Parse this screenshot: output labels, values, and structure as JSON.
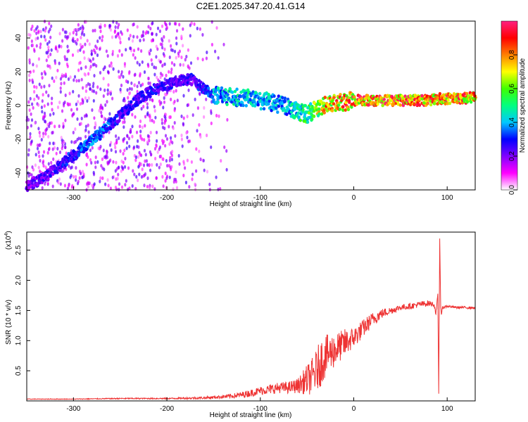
{
  "figure_title": "C2E1.2025.347.20.41.G14",
  "chart_data": [
    {
      "type": "heatmap",
      "title": "C2E1.2025.347.20.41.G14",
      "xlabel": "Height of straight line (km)",
      "ylabel": "Frequency (Hz)",
      "xlim": [
        -350,
        130
      ],
      "ylim": [
        -50,
        50
      ],
      "x_ticks": [
        -300,
        -200,
        -100,
        0,
        100
      ],
      "x_tick_labels": [
        "-300",
        "-200",
        "-100",
        "0",
        "100"
      ],
      "y_ticks": [
        -40,
        -20,
        0,
        20,
        40
      ],
      "y_tick_labels": [
        "-40",
        "-20",
        "0",
        "20",
        "40"
      ],
      "colorbar": {
        "label": "Normalized spectral amplitude",
        "range": [
          0,
          1
        ],
        "ticks": [
          0.0,
          0.2,
          0.4,
          0.6,
          0.8
        ],
        "tick_labels": [
          "0.0",
          "0.2",
          "0.4",
          "0.6",
          "0.8"
        ],
        "colors": [
          "#ffffff",
          "#ff00ff",
          "#8000ff",
          "#0000ff",
          "#00c8ff",
          "#00ff80",
          "#40ff00",
          "#ffff00",
          "#ff8000",
          "#ff0000",
          "#ff2080"
        ]
      },
      "ridge": {
        "x": [
          -350,
          -330,
          -310,
          -290,
          -270,
          -250,
          -230,
          -215,
          -200,
          -190,
          -175,
          -160,
          -150,
          -130,
          -110,
          -90,
          -70,
          -60,
          -50,
          -40,
          -30,
          -20,
          -10,
          0,
          20,
          50,
          80,
          90,
          100,
          115,
          130
        ],
        "y": [
          -48,
          -42,
          -34,
          -25,
          -16,
          -6,
          4,
          9,
          12,
          14,
          16,
          10,
          6,
          5,
          4,
          2,
          -1,
          -4,
          -5,
          -2,
          0,
          1,
          2,
          3,
          3,
          3,
          3,
          4,
          4,
          4,
          5
        ],
        "amplitude": [
          0.25,
          0.28,
          0.32,
          0.38,
          0.42,
          0.3,
          0.3,
          0.32,
          0.3,
          0.3,
          0.3,
          0.35,
          0.45,
          0.5,
          0.5,
          0.48,
          0.45,
          0.55,
          0.6,
          0.7,
          0.85,
          0.9,
          0.92,
          0.95,
          0.98,
          1.0,
          0.97,
          0.9,
          0.95,
          0.95,
          0.9
        ]
      },
      "noise_region": {
        "x_from": -350,
        "x_to": -150,
        "level": 0.15
      }
    },
    {
      "type": "line",
      "xlabel": "Height of straight line (km)",
      "ylabel": "SNR (10 * v/v)",
      "y_scale_label": "(x10",
      "y_scale_exponent": "4",
      "xlim": [
        -350,
        130
      ],
      "ylim": [
        0,
        2.8
      ],
      "x_ticks": [
        -300,
        -200,
        -100,
        0,
        100
      ],
      "x_tick_labels": [
        "-300",
        "-200",
        "-100",
        "0",
        "100"
      ],
      "y_ticks": [
        0.5,
        1.0,
        1.5,
        2.0,
        2.5
      ],
      "y_tick_labels": [
        "0.5",
        "1.0",
        "1.5",
        "2.0",
        "2.5"
      ],
      "series": [
        {
          "name": "SNR",
          "color": "#ee3333",
          "x": [
            -350,
            -300,
            -250,
            -200,
            -160,
            -140,
            -130,
            -120,
            -110,
            -100,
            -90,
            -80,
            -70,
            -60,
            -50,
            -45,
            -40,
            -35,
            -30,
            -25,
            -20,
            -15,
            -10,
            -5,
            0,
            10,
            20,
            30,
            40,
            50,
            60,
            70,
            80,
            86,
            88,
            90,
            91,
            92,
            93,
            94,
            95,
            100,
            110,
            120,
            130
          ],
          "y": [
            0.03,
            0.03,
            0.04,
            0.04,
            0.05,
            0.07,
            0.08,
            0.1,
            0.13,
            0.17,
            0.19,
            0.22,
            0.22,
            0.25,
            0.35,
            0.4,
            0.5,
            0.65,
            0.75,
            0.8,
            0.85,
            0.9,
            0.95,
            1.0,
            1.05,
            1.2,
            1.35,
            1.45,
            1.5,
            1.55,
            1.57,
            1.6,
            1.62,
            1.6,
            1.45,
            1.75,
            0.12,
            2.75,
            1.6,
            1.4,
            1.55,
            1.57,
            1.55,
            1.55,
            1.54
          ],
          "noise_amplitude": [
            0.005,
            0.005,
            0.01,
            0.01,
            0.02,
            0.03,
            0.04,
            0.05,
            0.06,
            0.07,
            0.08,
            0.09,
            0.1,
            0.12,
            0.25,
            0.3,
            0.35,
            0.4,
            0.35,
            0.3,
            0.3,
            0.25,
            0.25,
            0.2,
            0.18,
            0.15,
            0.12,
            0.08,
            0.06,
            0.05,
            0.05,
            0.05,
            0.05,
            0.04,
            0.04,
            0.04,
            0.0,
            0.0,
            0.04,
            0.04,
            0.03,
            0.02,
            0.02,
            0.02,
            0.02
          ]
        }
      ]
    }
  ]
}
